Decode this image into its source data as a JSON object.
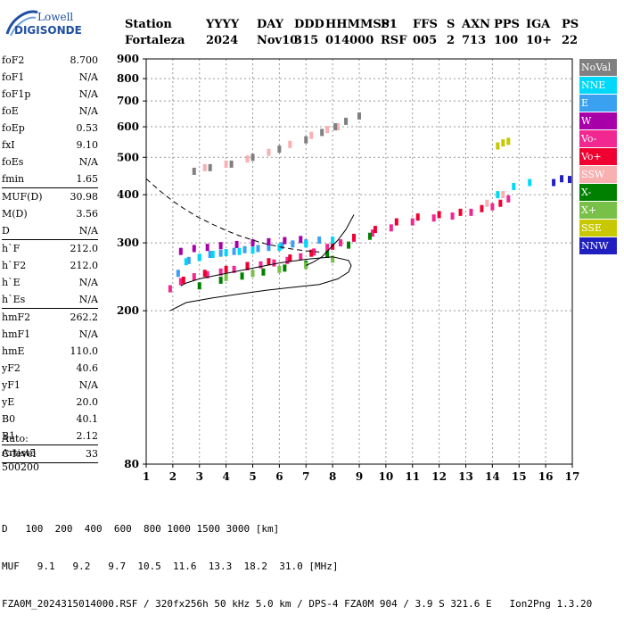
{
  "logo": {
    "top": "Lowell",
    "bottom": "DIGISONDE"
  },
  "header": {
    "labels": [
      "Station",
      "YYYY",
      "DAY",
      "DDD",
      "HHMMSS",
      "P1",
      "FFS",
      "S",
      "AXN",
      "PPS",
      "IGA",
      "PS"
    ],
    "values": [
      "Fortaleza",
      "2024",
      "Nov10",
      "315",
      "014000",
      "RSF",
      "005",
      "2",
      "713",
      "100",
      "10+",
      "22"
    ]
  },
  "params": [
    {
      "label": "foF2",
      "value": "8.700"
    },
    {
      "label": "foF1",
      "value": "N/A"
    },
    {
      "label": "foF1p",
      "value": "N/A"
    },
    {
      "label": "foE",
      "value": "N/A"
    },
    {
      "label": "foEp",
      "value": "0.53"
    },
    {
      "label": "fxI",
      "value": "9.10"
    },
    {
      "label": "foEs",
      "value": "N/A"
    },
    {
      "label": "fmin",
      "value": "1.65"
    },
    {
      "sep": true
    },
    {
      "label": "MUF(D)",
      "value": "30.98"
    },
    {
      "label": "M(D)",
      "value": "3.56"
    },
    {
      "label": "D",
      "value": "N/A"
    },
    {
      "sep": true
    },
    {
      "label": "h`F",
      "value": "212.0"
    },
    {
      "label": "h`F2",
      "value": "212.0"
    },
    {
      "label": "h`E",
      "value": "N/A"
    },
    {
      "label": "h`Es",
      "value": "N/A"
    },
    {
      "sep": true
    },
    {
      "label": "hmF2",
      "value": "262.2"
    },
    {
      "label": "hmF1",
      "value": "N/A"
    },
    {
      "label": "hmE",
      "value": "110.0"
    },
    {
      "label": "yF2",
      "value": "40.6"
    },
    {
      "label": "yF1",
      "value": "N/A"
    },
    {
      "label": "yE",
      "value": "20.0"
    },
    {
      "label": "B0",
      "value": "40.1"
    },
    {
      "label": "B1",
      "value": "2.12"
    },
    {
      "sep": true
    },
    {
      "label": "C-level",
      "value": "33"
    },
    {
      "sep": true
    }
  ],
  "auto": [
    "Auto:",
    "Artist5",
    "500200"
  ],
  "legend": [
    {
      "label": "NoVal",
      "color": "#808080"
    },
    {
      "label": "NNE",
      "color": "#00d8f8"
    },
    {
      "label": "E",
      "color": "#3aa0f0"
    },
    {
      "label": "W",
      "color": "#a800a8"
    },
    {
      "label": "Vo-",
      "color": "#f02890"
    },
    {
      "label": "Vo+",
      "color": "#f00030"
    },
    {
      "label": "SSW",
      "color": "#f8b0b0"
    },
    {
      "label": "X-",
      "color": "#008000"
    },
    {
      "label": "X+",
      "color": "#78c048"
    },
    {
      "label": "SSE",
      "color": "#c8c800"
    },
    {
      "label": "NNW",
      "color": "#2020c0"
    }
  ],
  "footer": {
    "d_label": "D",
    "d_values": [
      "100",
      "200",
      "400",
      "600",
      "800",
      "1000",
      "1500",
      "3000"
    ],
    "d_unit": "[km]",
    "muf_label": "MUF",
    "muf_values": [
      "9.1",
      "9.2",
      "9.7",
      "10.5",
      "11.6",
      "13.3",
      "18.2",
      "31.0"
    ],
    "muf_unit": "[MHz]",
    "info": "FZA0M_2024315014000.RSF / 320fx256h 50 kHz 5.0 km / DPS-4 FZA0M 904 / 3.9 S 321.6 E   Ion2Png 1.3.20"
  },
  "chart_data": {
    "type": "scatter",
    "title": "",
    "xlabel": "",
    "ylabel": "",
    "xlim": [
      1,
      17
    ],
    "ylim": [
      80,
      900
    ],
    "y_scale": "log",
    "x_ticks": [
      1,
      2,
      3,
      4,
      5,
      6,
      7,
      8,
      9,
      10,
      11,
      12,
      13,
      14,
      15,
      16,
      17
    ],
    "y_ticks": [
      80,
      200,
      300,
      400,
      500,
      600,
      700,
      800,
      900
    ],
    "grid": "dashed",
    "series": [
      {
        "name": "E",
        "x": [
          2.2,
          2.6,
          3.0,
          3.4,
          3.8,
          4.3,
          4.7,
          5.2,
          5.6,
          6.1,
          6.5,
          7.0,
          7.5
        ],
        "y": [
          250,
          270,
          275,
          280,
          282,
          285,
          288,
          290,
          292,
          295,
          298,
          300,
          305
        ]
      },
      {
        "name": "Vo-",
        "x": [
          1.9,
          2.3,
          2.8,
          3.3,
          3.8,
          4.3,
          4.8,
          5.3,
          5.8,
          6.3,
          6.8,
          7.3,
          7.8,
          8.3,
          8.8,
          9.5,
          10.2,
          11.0,
          11.8,
          12.5,
          13.2,
          14.0,
          14.6
        ],
        "y": [
          228,
          238,
          245,
          248,
          252,
          256,
          260,
          263,
          266,
          270,
          276,
          284,
          292,
          300,
          308,
          318,
          328,
          340,
          348,
          352,
          360,
          372,
          390
        ]
      },
      {
        "name": "Vo+",
        "x": [
          2.4,
          3.2,
          4.0,
          4.8,
          5.6,
          6.4,
          7.2,
          8.0,
          8.8,
          9.6,
          10.4,
          11.2,
          12.0,
          12.8,
          13.6,
          14.3
        ],
        "y": [
          240,
          250,
          256,
          262,
          268,
          274,
          282,
          294,
          310,
          325,
          340,
          350,
          355,
          360,
          368,
          380
        ]
      },
      {
        "name": "W",
        "x": [
          2.3,
          2.8,
          3.3,
          3.8,
          4.4,
          5.0,
          5.6,
          6.2,
          6.8
        ],
        "y": [
          285,
          290,
          292,
          295,
          297,
          300,
          302,
          304,
          306
        ]
      },
      {
        "name": "NNE",
        "x": [
          2.5,
          3.0,
          3.5,
          4.0,
          4.5,
          5.0,
          6.0,
          7.0,
          8.0,
          14.2,
          14.8,
          15.4
        ],
        "y": [
          268,
          275,
          280,
          283,
          285,
          287,
          292,
          298,
          305,
          400,
          420,
          430
        ]
      },
      {
        "name": "X-",
        "x": [
          3.0,
          3.8,
          4.6,
          5.4,
          6.2,
          7.0,
          7.8,
          8.6,
          9.4
        ],
        "y": [
          232,
          240,
          246,
          252,
          258,
          264,
          280,
          296,
          312
        ]
      },
      {
        "name": "X+",
        "x": [
          4.0,
          5.0,
          6.0,
          7.0,
          8.0
        ],
        "y": [
          244,
          250,
          256,
          262,
          272
        ]
      },
      {
        "name": "SSW",
        "x": [
          3.2,
          4.0,
          4.8,
          5.6,
          6.4,
          7.2,
          7.8,
          8.2,
          13.8,
          14.4
        ],
        "y": [
          470,
          480,
          495,
          515,
          540,
          570,
          590,
          600,
          380,
          400
        ]
      },
      {
        "name": "NoVal",
        "x": [
          2.8,
          3.4,
          4.2,
          5.0,
          6.0,
          7.0,
          7.6,
          8.1,
          8.5,
          9.0
        ],
        "y": [
          460,
          470,
          480,
          500,
          525,
          555,
          580,
          600,
          620,
          640
        ]
      },
      {
        "name": "SSE",
        "x": [
          14.2,
          14.4,
          14.6
        ],
        "y": [
          535,
          545,
          550
        ]
      },
      {
        "name": "NNW",
        "x": [
          16.3,
          16.6,
          16.9
        ],
        "y": [
          430,
          440,
          438
        ]
      }
    ],
    "curves": [
      {
        "name": "profile_solid",
        "x": [
          1.9,
          2.5,
          3.5,
          4.5,
          5.5,
          6.5,
          7.5,
          8.2,
          8.6,
          8.7,
          8.6,
          8.0,
          7.0,
          6.0,
          5.0,
          4.0,
          3.0,
          2.5,
          2.3
        ],
        "y": [
          200,
          210,
          216,
          221,
          226,
          230,
          234,
          242,
          252,
          262,
          270,
          276,
          272,
          266,
          258,
          250,
          242,
          236,
          232
        ]
      },
      {
        "name": "virtual_height_dashed",
        "x": [
          1.0,
          1.5,
          2.0,
          2.5,
          3.0,
          3.5,
          4.0,
          4.5,
          5.0,
          5.5,
          6.0,
          6.5,
          7.0,
          7.5
        ],
        "y": [
          440,
          410,
          385,
          365,
          348,
          335,
          323,
          313,
          305,
          298,
          293,
          289,
          286,
          284
        ]
      },
      {
        "name": "trace_solid",
        "x": [
          7.0,
          7.3,
          7.6,
          7.9,
          8.2,
          8.5,
          8.8
        ],
        "y": [
          262,
          268,
          276,
          290,
          305,
          325,
          355
        ]
      }
    ]
  }
}
